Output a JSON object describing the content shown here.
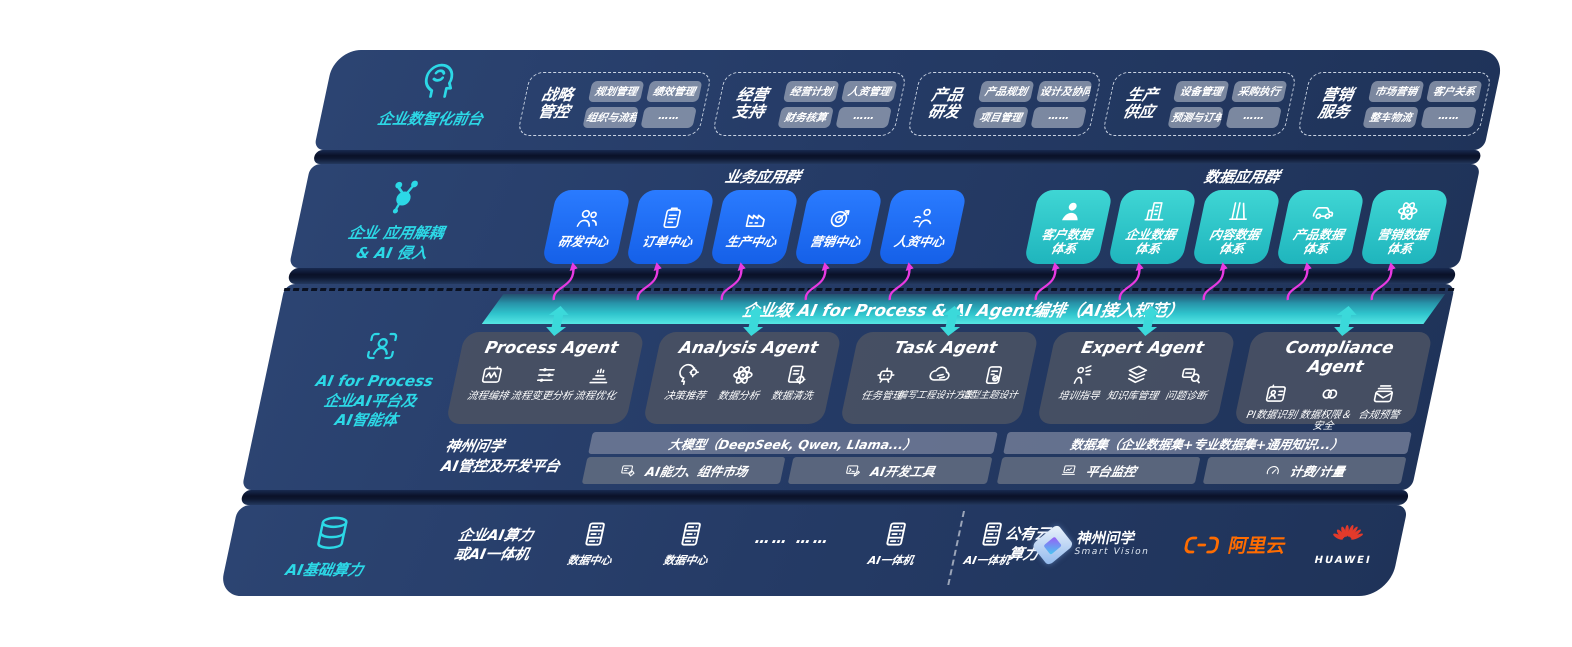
{
  "colors": {
    "teal_accent": "#2cd8e6",
    "blue_box": "#1c6ff2",
    "teal_box": "#2cc7c9",
    "magenta_arrow": "#e83ae1",
    "bar_teal": "#36d2d8",
    "aliyun_orange": "#ff6c00",
    "huawei_red": "#e23a2b"
  },
  "front_office": {
    "rail": "企业数智化前台",
    "icon": "brain",
    "groups": [
      {
        "t1": "战略",
        "t2": "管控",
        "chips": [
          "规划管理",
          "绩效管理",
          "组织与流程",
          "……"
        ]
      },
      {
        "t1": "经营",
        "t2": "支持",
        "chips": [
          "经营计划",
          "人资管理",
          "财务核算",
          "……"
        ]
      },
      {
        "t1": "产品",
        "t2": "研发",
        "chips": [
          "产品规划",
          "设计及协同",
          "项目管理",
          "……"
        ]
      },
      {
        "t1": "生产",
        "t2": "供应",
        "chips": [
          "设备管理",
          "采购执行",
          "预测与订单",
          "……"
        ]
      },
      {
        "t1": "营销",
        "t2": "服务",
        "chips": [
          "市场营销",
          "客户关系",
          "整车物流",
          "……"
        ]
      }
    ]
  },
  "app_layer": {
    "rail1": "企业 应用解耦",
    "rail2": "& AI 侵入",
    "icon": "molecule",
    "business": {
      "title": "业务应用群",
      "items": [
        {
          "label": "研发中心",
          "icon": "users"
        },
        {
          "label": "订单中心",
          "icon": "clipboard"
        },
        {
          "label": "生产中心",
          "icon": "factory"
        },
        {
          "label": "营销中心",
          "icon": "target"
        },
        {
          "label": "人资中心",
          "icon": "person-wave"
        }
      ]
    },
    "data": {
      "title": "数据应用群",
      "items": [
        {
          "l1": "客户数据",
          "l2": "体系",
          "icon": "person"
        },
        {
          "l1": "企业数据",
          "l2": "体系",
          "icon": "building"
        },
        {
          "l1": "内容数据",
          "l2": "体系",
          "icon": "books"
        },
        {
          "l1": "产品数据",
          "l2": "体系",
          "icon": "car"
        },
        {
          "l1": "营销数据",
          "l2": "体系",
          "icon": "atom"
        }
      ]
    }
  },
  "ai_layer": {
    "rail1": "AI for Process",
    "rail2": "企业AI平台及",
    "rail3": "AI智能体",
    "icon": "scan-person",
    "bar": "企业级 AI for Process & AI Agent编排（AI接入规范）",
    "agents": [
      {
        "title": "Process Agent",
        "items": [
          {
            "label": "流程编排",
            "icon": "flow"
          },
          {
            "label": "流程变更分析",
            "icon": "sliders"
          },
          {
            "label": "流程优化",
            "icon": "optimize"
          }
        ]
      },
      {
        "title": "Analysis Agent",
        "items": [
          {
            "label": "决策推荐",
            "icon": "head"
          },
          {
            "label": "数据分析",
            "icon": "atom"
          },
          {
            "label": "数据清洗",
            "icon": "doc-clean"
          }
        ]
      },
      {
        "title": "Task Agent",
        "items": [
          {
            "label": "任务管理",
            "icon": "robot"
          },
          {
            "label": "编写工程设计方案",
            "icon": "cloud-pen"
          },
          {
            "label": "造型主题设计",
            "icon": "theme"
          }
        ]
      },
      {
        "title": "Expert Agent",
        "items": [
          {
            "label": "培训指导",
            "icon": "training"
          },
          {
            "label": "知识库管理",
            "icon": "layers"
          },
          {
            "label": "问题诊断",
            "icon": "diagnose"
          }
        ]
      },
      {
        "title": "Compliance Agent",
        "items": [
          {
            "label": "PI数据识别",
            "icon": "id-card"
          },
          {
            "label": "数据权限＆安全",
            "icon": "rings"
          },
          {
            "label": "合规预警",
            "icon": "mail"
          }
        ]
      }
    ],
    "platform": {
      "t1": "神州问学",
      "t2": "AI管控及开发平台",
      "model_header": "大模型（DeepSeek, Qwen, Llama...）",
      "model_cells": [
        {
          "label": "AI能力、组件市场",
          "icon": "market"
        },
        {
          "label": "AI开发工具",
          "icon": "devtools"
        }
      ],
      "data_header": "数据集（企业数据集+专业数据集+通用知识...）",
      "data_cells": [
        {
          "label": "平台监控",
          "icon": "laptop"
        },
        {
          "label": "计费/计量",
          "icon": "gauge"
        }
      ]
    }
  },
  "infra_layer": {
    "rail": "AI基础算力",
    "icon": "database",
    "compute1": "企业AI算力",
    "compute2": "或AI一体机",
    "nodes": [
      {
        "label": "数据中心",
        "icon": "server"
      },
      {
        "label": "数据中心",
        "icon": "server"
      },
      {
        "label": "…… ……",
        "icon": ""
      },
      {
        "label": "AI一体机",
        "icon": "server"
      },
      {
        "label": "AI一体机",
        "icon": "server"
      }
    ],
    "cloud1": "公有云",
    "cloud2": "算力",
    "vendors": {
      "shenzhou_name": "神州问学",
      "shenzhou_sub": "Smart Vision",
      "aliyun": "阿里云",
      "huawei": "HUAWEI"
    }
  }
}
